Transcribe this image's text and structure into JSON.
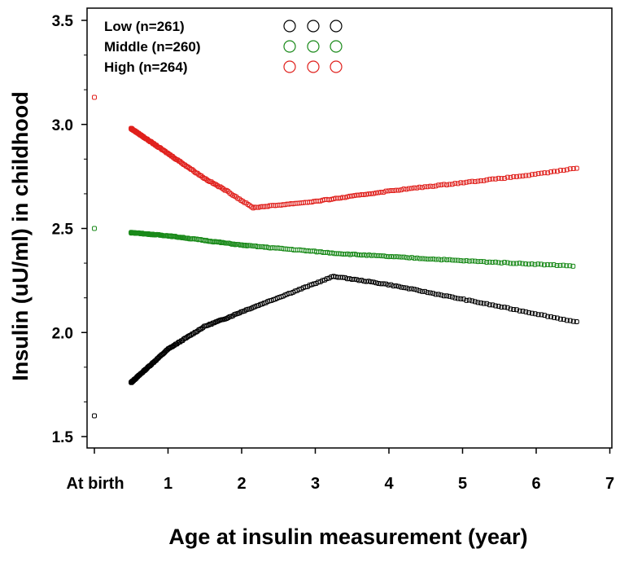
{
  "chart_data": {
    "type": "scatter",
    "title": "",
    "xlabel": "Age at insulin measurement (year)",
    "ylabel": "Insulin (uU/ml) in childhood",
    "xlim": [
      -0.1,
      7.1
    ],
    "ylim": [
      1.45,
      3.55
    ],
    "x_ticks": [
      0,
      1,
      2,
      3,
      4,
      5,
      6,
      7
    ],
    "x_tick_labels": [
      "At birth",
      "1",
      "2",
      "3",
      "4",
      "5",
      "6",
      "7"
    ],
    "y_ticks": [
      1.5,
      2.0,
      2.5,
      3.0,
      3.5
    ],
    "y_tick_labels": [
      "1.5",
      "2.0",
      "2.5",
      "3.0",
      "3.5"
    ],
    "grid": false,
    "legend_position": "top-left",
    "series": [
      {
        "name": "Low (n=261)",
        "color": "#000000",
        "birth": 1.6,
        "knots": [
          [
            0.5,
            1.76
          ],
          [
            1.0,
            1.92
          ],
          [
            1.5,
            2.03
          ],
          [
            1.8,
            2.07
          ],
          [
            2.0,
            2.1
          ],
          [
            3.25,
            2.27
          ],
          [
            4.0,
            2.23
          ],
          [
            5.0,
            2.16
          ],
          [
            6.0,
            2.09
          ],
          [
            6.55,
            2.05
          ]
        ]
      },
      {
        "name": "Middle (n=260)",
        "color": "#1a8a1a",
        "birth": 2.5,
        "knots": [
          [
            0.5,
            2.48
          ],
          [
            1.0,
            2.465
          ],
          [
            2.0,
            2.42
          ],
          [
            3.3,
            2.38
          ],
          [
            4.0,
            2.365
          ],
          [
            5.0,
            2.345
          ],
          [
            6.5,
            2.32
          ]
        ]
      },
      {
        "name": "High (n=264)",
        "color": "#e0201c",
        "birth": 3.13,
        "knots": [
          [
            0.5,
            2.98
          ],
          [
            1.0,
            2.86
          ],
          [
            1.5,
            2.74
          ],
          [
            1.8,
            2.68
          ],
          [
            2.15,
            2.6
          ],
          [
            3.0,
            2.63
          ],
          [
            4.0,
            2.68
          ],
          [
            5.0,
            2.72
          ],
          [
            6.0,
            2.76
          ],
          [
            6.55,
            2.79
          ]
        ]
      }
    ]
  }
}
